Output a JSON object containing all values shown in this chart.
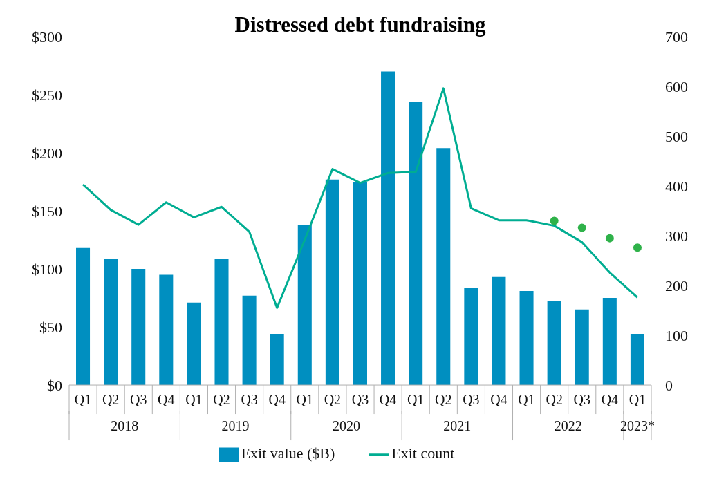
{
  "chart_data": {
    "type": "bar",
    "title": "Distressed debt fundraising",
    "categories": [
      "Q1",
      "Q2",
      "Q3",
      "Q4",
      "Q1",
      "Q2",
      "Q3",
      "Q4",
      "Q1",
      "Q2",
      "Q3",
      "Q4",
      "Q1",
      "Q2",
      "Q3",
      "Q4",
      "Q1",
      "Q2",
      "Q3",
      "Q4",
      "Q1"
    ],
    "annotations": [
      "2018",
      "2019",
      "2020",
      "2021",
      "2022",
      "2023*"
    ],
    "series": [
      {
        "name": "Exit value ($B)",
        "color": "#008fc0",
        "values": [
          118,
          109,
          100,
          95,
          71,
          109,
          77,
          44,
          138,
          177,
          175,
          270,
          244,
          204,
          84,
          93,
          81,
          72,
          65,
          75,
          44
        ]
      },
      {
        "name": "Exit count",
        "type": "line",
        "axis": "y2",
        "marker": "none",
        "color": "#00ad92",
        "values": [
          403,
          352,
          322,
          367,
          337,
          358,
          308,
          155,
          292,
          434,
          406,
          426,
          428,
          596,
          355,
          331,
          331,
          320,
          287,
          226,
          176
        ]
      },
      {
        "type": "scatter",
        "axis": "y2",
        "marker": "circle",
        "color": "#2fb24a",
        "values": [
          null,
          null,
          null,
          null,
          null,
          null,
          null,
          null,
          null,
          null,
          null,
          null,
          null,
          null,
          null,
          null,
          null,
          330,
          316,
          295,
          276
        ]
      }
    ],
    "ylim": [
      0,
      300
    ],
    "yticks": [
      {
        "value": 0,
        "label": "$0"
      },
      {
        "value": 50,
        "label": "$50"
      },
      {
        "value": 100,
        "label": "$100"
      },
      {
        "value": 150,
        "label": "$150"
      },
      {
        "value": 200,
        "label": "$200"
      },
      {
        "value": 250,
        "label": "$250"
      },
      {
        "value": 300,
        "label": "$300"
      }
    ],
    "y2lim": [
      0,
      700
    ],
    "y2ticks": [
      0,
      100,
      200,
      300,
      400,
      500,
      600,
      700
    ],
    "grid": false,
    "legend": "bottom"
  }
}
